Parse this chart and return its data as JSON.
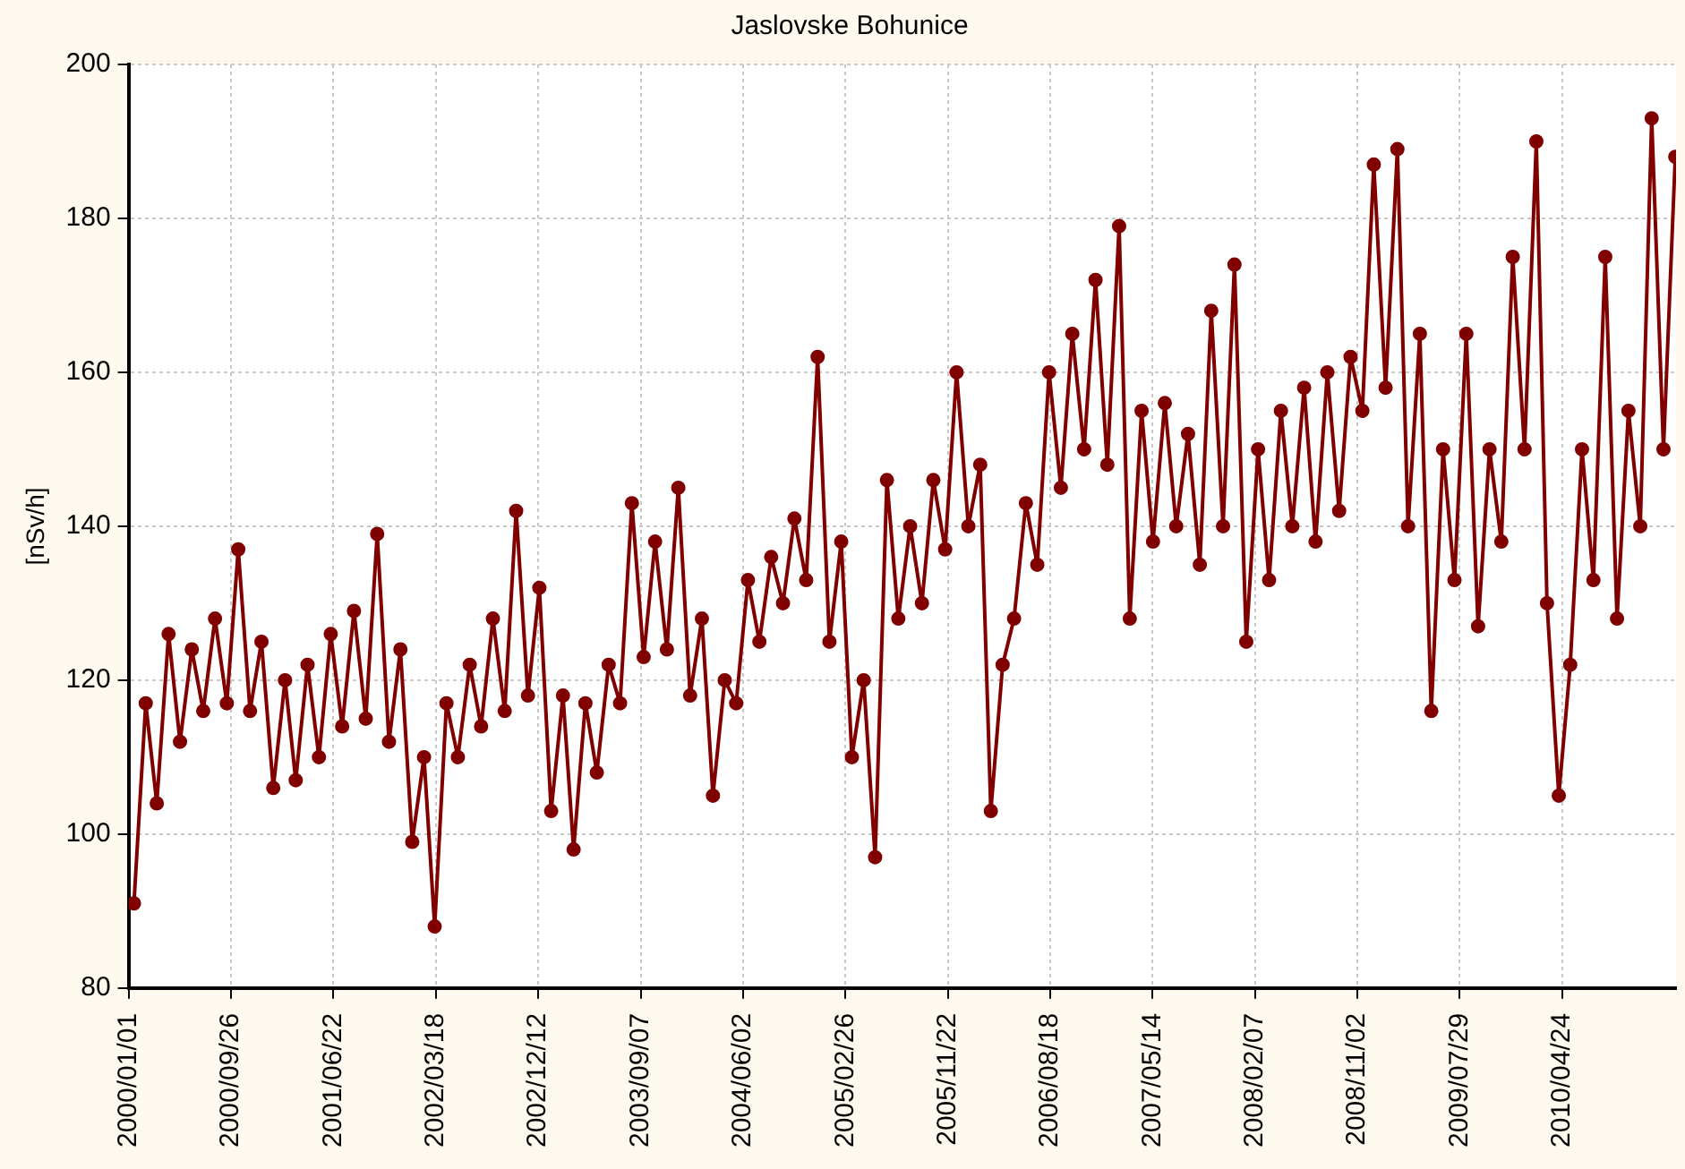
{
  "chart_data": {
    "type": "line",
    "title": "Jaslovske Bohunice",
    "ylabel": "[nSv/h]",
    "x": [
      "2000-01-15",
      "2000-02-15",
      "2000-03-15",
      "2000-04-15",
      "2000-05-15",
      "2000-06-15",
      "2000-07-15",
      "2000-08-15",
      "2000-09-15",
      "2000-10-15",
      "2000-11-15",
      "2000-12-15",
      "2001-01-15",
      "2001-02-15",
      "2001-03-15",
      "2001-04-15",
      "2001-05-15",
      "2001-06-15",
      "2001-07-15",
      "2001-08-15",
      "2001-09-15",
      "2001-10-15",
      "2001-11-15",
      "2001-12-15",
      "2002-01-15",
      "2002-02-15",
      "2002-03-15",
      "2002-04-15",
      "2002-05-15",
      "2002-06-15",
      "2002-07-15",
      "2002-08-15",
      "2002-09-15",
      "2002-10-15",
      "2002-11-15",
      "2002-12-15",
      "2003-01-15",
      "2003-02-15",
      "2003-03-15",
      "2003-04-15",
      "2003-05-15",
      "2003-06-15",
      "2003-07-15",
      "2003-08-15",
      "2003-09-15",
      "2003-10-15",
      "2003-11-15",
      "2003-12-15",
      "2004-01-15",
      "2004-02-15",
      "2004-03-15",
      "2004-04-15",
      "2004-05-15",
      "2004-06-15",
      "2004-07-15",
      "2004-08-15",
      "2004-09-15",
      "2004-10-15",
      "2004-11-15",
      "2004-12-15",
      "2005-01-15",
      "2005-02-15",
      "2005-03-15",
      "2005-04-15",
      "2005-05-15",
      "2005-06-15",
      "2005-07-15",
      "2005-08-15",
      "2005-09-15",
      "2005-10-15",
      "2005-11-15",
      "2005-12-15",
      "2006-01-15",
      "2006-02-15",
      "2006-03-15",
      "2006-04-15",
      "2006-05-15",
      "2006-06-15",
      "2006-07-15",
      "2006-08-15",
      "2006-09-15",
      "2006-10-15",
      "2006-11-15",
      "2006-12-15",
      "2007-01-15",
      "2007-02-15",
      "2007-03-15",
      "2007-04-15",
      "2007-05-15",
      "2007-06-15",
      "2007-07-15",
      "2007-08-15",
      "2007-09-15",
      "2007-10-15",
      "2007-11-15",
      "2007-12-15",
      "2008-01-15",
      "2008-02-15",
      "2008-03-15",
      "2008-04-15",
      "2008-05-15",
      "2008-06-15",
      "2008-07-15",
      "2008-08-15",
      "2008-09-15",
      "2008-10-15",
      "2008-11-15",
      "2008-12-15",
      "2009-01-15",
      "2009-02-15",
      "2009-03-15",
      "2009-04-15",
      "2009-05-15",
      "2009-06-15",
      "2009-07-15",
      "2009-08-15",
      "2009-09-15",
      "2009-10-15",
      "2009-11-15",
      "2009-12-15",
      "2010-01-15",
      "2010-02-15",
      "2010-03-15",
      "2010-04-15",
      "2010-05-15",
      "2010-06-15",
      "2010-07-15",
      "2010-08-15",
      "2010-09-15",
      "2010-10-15",
      "2010-11-15",
      "2010-12-15",
      "2011-01-15",
      "2011-02-15"
    ],
    "series": [
      {
        "color": "#800000",
        "values": [
          91,
          117,
          104,
          126,
          112,
          124,
          116,
          128,
          117,
          137,
          116,
          125,
          106,
          120,
          107,
          122,
          110,
          126,
          114,
          129,
          115,
          139,
          112,
          124,
          99,
          110,
          88,
          117,
          110,
          122,
          114,
          128,
          116,
          142,
          118,
          132,
          103,
          118,
          98,
          117,
          108,
          122,
          117,
          143,
          123,
          138,
          124,
          145,
          118,
          128,
          105,
          120,
          117,
          133,
          125,
          136,
          130,
          141,
          133,
          162,
          125,
          138,
          110,
          120,
          97,
          146,
          128,
          140,
          130,
          146,
          137,
          160,
          140,
          148,
          103,
          122,
          128,
          143,
          135,
          160,
          145,
          165,
          150,
          172,
          148,
          179,
          128,
          155,
          138,
          156,
          140,
          152,
          135,
          168,
          140,
          174,
          125,
          150,
          133,
          155,
          140,
          158,
          138,
          160,
          142,
          162,
          155,
          187,
          158,
          189,
          140,
          165,
          116,
          150,
          133,
          165,
          127,
          150,
          138,
          175,
          150,
          190,
          130,
          105,
          122,
          150,
          133,
          175,
          128,
          155,
          140,
          193,
          150,
          188
        ]
      }
    ],
    "xlim": [
      "2000-01-01",
      "2011-02-17"
    ],
    "xticks": [
      {
        "value": "2000-01-01",
        "label": "2000/01/01"
      },
      {
        "value": "2000-09-26",
        "label": "2000/09/26"
      },
      {
        "value": "2001-06-22",
        "label": "2001/06/22"
      },
      {
        "value": "2002-03-18",
        "label": "2002/03/18"
      },
      {
        "value": "2002-12-12",
        "label": "2002/12/12"
      },
      {
        "value": "2003-09-07",
        "label": "2003/09/07"
      },
      {
        "value": "2004-06-02",
        "label": "2004/06/02"
      },
      {
        "value": "2005-02-26",
        "label": "2005/02/26"
      },
      {
        "value": "2005-11-22",
        "label": "2005/11/22"
      },
      {
        "value": "2006-08-18",
        "label": "2006/08/18"
      },
      {
        "value": "2007-05-14",
        "label": "2007/05/14"
      },
      {
        "value": "2008-02-07",
        "label": "2008/02/07"
      },
      {
        "value": "2008-11-02",
        "label": "2008/11/02"
      },
      {
        "value": "2009-07-29",
        "label": "2009/07/29"
      },
      {
        "value": "2010-04-24",
        "label": "2010/04/24"
      }
    ],
    "ylim": [
      80,
      200
    ],
    "yticks": [
      80,
      100,
      120,
      140,
      160,
      180,
      200
    ],
    "grid": true,
    "marker": "circle",
    "line_style": "solid"
  }
}
